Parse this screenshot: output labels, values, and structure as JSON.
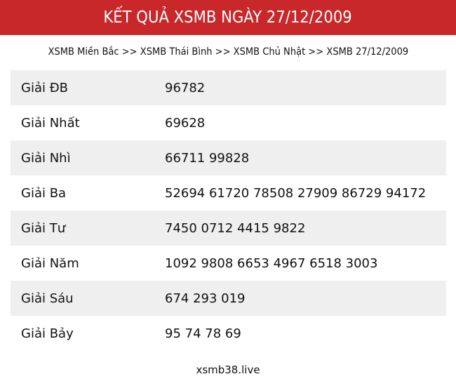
{
  "header": {
    "title": "KẾT QUẢ XSMB NGÀY 27/12/2009",
    "color": "#c8282a"
  },
  "breadcrumb": {
    "items": [
      "XSMB Miền Bắc",
      "XSMB Thái Bình",
      "XSMB Chủ Nhật",
      "XSMB 27/12/2009"
    ],
    "separator": ">>"
  },
  "results": [
    {
      "label": "Giải ĐB",
      "value": "96782"
    },
    {
      "label": "Giải Nhất",
      "value": "69628"
    },
    {
      "label": "Giải Nhì",
      "value": "66711 99828"
    },
    {
      "label": "Giải Ba",
      "value": "52694 61720 78508 27909 86729 94172"
    },
    {
      "label": "Giải Tư",
      "value": "7450 0712 4415 9822"
    },
    {
      "label": "Giải Năm",
      "value": "1092 9808 6653 4967 6518 3003"
    },
    {
      "label": "Giải Sáu",
      "value": "674 293 019"
    },
    {
      "label": "Giải Bảy",
      "value": "95 74 78 69"
    }
  ],
  "footer": {
    "site": "xsmb38.live"
  }
}
